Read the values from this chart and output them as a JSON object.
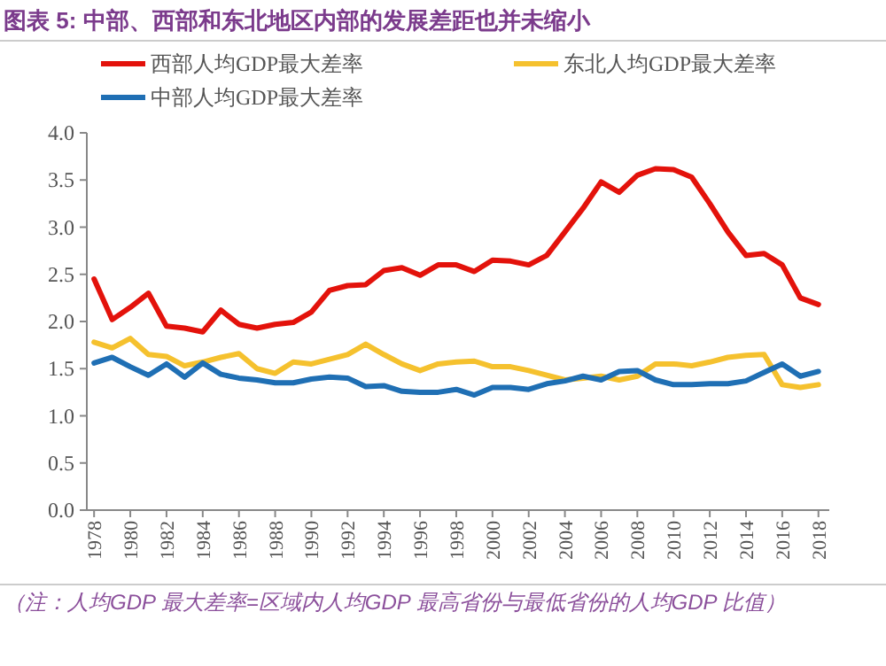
{
  "chart_data": {
    "type": "line",
    "title": "图表 5: 中部、西部和东北地区内部的发展差距也并未缩小",
    "x": [
      1978,
      1979,
      1980,
      1981,
      1982,
      1983,
      1984,
      1985,
      1986,
      1987,
      1988,
      1989,
      1990,
      1991,
      1992,
      1993,
      1994,
      1995,
      1996,
      1997,
      1998,
      1999,
      2000,
      2001,
      2002,
      2003,
      2004,
      2005,
      2006,
      2007,
      2008,
      2009,
      2010,
      2011,
      2012,
      2013,
      2014,
      2015,
      2016,
      2017,
      2018
    ],
    "series": [
      {
        "name": "西部人均GDP最大差率",
        "color": "#e3120b",
        "values": [
          2.45,
          2.02,
          2.15,
          2.3,
          1.95,
          1.93,
          1.89,
          2.12,
          1.97,
          1.93,
          1.97,
          1.99,
          2.1,
          2.33,
          2.38,
          2.39,
          2.54,
          2.57,
          2.49,
          2.6,
          2.6,
          2.53,
          2.65,
          2.64,
          2.6,
          2.7,
          2.95,
          3.2,
          3.48,
          3.37,
          3.55,
          3.62,
          3.61,
          3.53,
          3.25,
          2.95,
          2.7,
          2.72,
          2.6,
          2.25,
          2.18
        ]
      },
      {
        "name": "东北人均GDP最大差率",
        "color": "#f5c12e",
        "values": [
          1.78,
          1.72,
          1.82,
          1.65,
          1.63,
          1.53,
          1.57,
          1.62,
          1.66,
          1.5,
          1.45,
          1.57,
          1.55,
          1.6,
          1.65,
          1.76,
          1.65,
          1.55,
          1.48,
          1.55,
          1.57,
          1.58,
          1.52,
          1.52,
          1.48,
          1.43,
          1.38,
          1.4,
          1.42,
          1.38,
          1.42,
          1.55,
          1.55,
          1.53,
          1.57,
          1.62,
          1.64,
          1.65,
          1.33,
          1.3,
          1.33
        ]
      },
      {
        "name": "中部人均GDP最大差率",
        "color": "#1f6fb4",
        "values": [
          1.56,
          1.62,
          1.52,
          1.43,
          1.55,
          1.41,
          1.56,
          1.44,
          1.4,
          1.38,
          1.35,
          1.35,
          1.39,
          1.41,
          1.4,
          1.31,
          1.32,
          1.26,
          1.25,
          1.25,
          1.28,
          1.22,
          1.3,
          1.3,
          1.28,
          1.34,
          1.37,
          1.42,
          1.38,
          1.47,
          1.48,
          1.38,
          1.33,
          1.33,
          1.34,
          1.34,
          1.37,
          1.46,
          1.55,
          1.42,
          1.47
        ]
      }
    ],
    "xlim": [
      1977.6,
      2018.6
    ],
    "xticks": [
      1978,
      1980,
      1982,
      1984,
      1986,
      1988,
      1990,
      1992,
      1994,
      1996,
      1998,
      2000,
      2002,
      2004,
      2006,
      2008,
      2010,
      2012,
      2014,
      2016,
      2018
    ],
    "ylim": [
      0,
      4
    ],
    "yticks": [
      {
        "value": 0,
        "label": "0.0"
      },
      {
        "value": 0.5,
        "label": "0.5"
      },
      {
        "value": 1,
        "label": "1.0"
      },
      {
        "value": 1.5,
        "label": "1.5"
      },
      {
        "value": 2,
        "label": "2.0"
      },
      {
        "value": 2.5,
        "label": "2.5"
      },
      {
        "value": 3,
        "label": "3.0"
      },
      {
        "value": 3.5,
        "label": "3.5"
      },
      {
        "value": 4,
        "label": "4.0"
      }
    ],
    "grid": false,
    "legend": "top",
    "marker": "none",
    "line_style": "solid",
    "annotations": [
      "（注：人均GDP 最大差率=区域内人均GDP 最高省份与最低省份的人均GDP 比值）"
    ]
  }
}
